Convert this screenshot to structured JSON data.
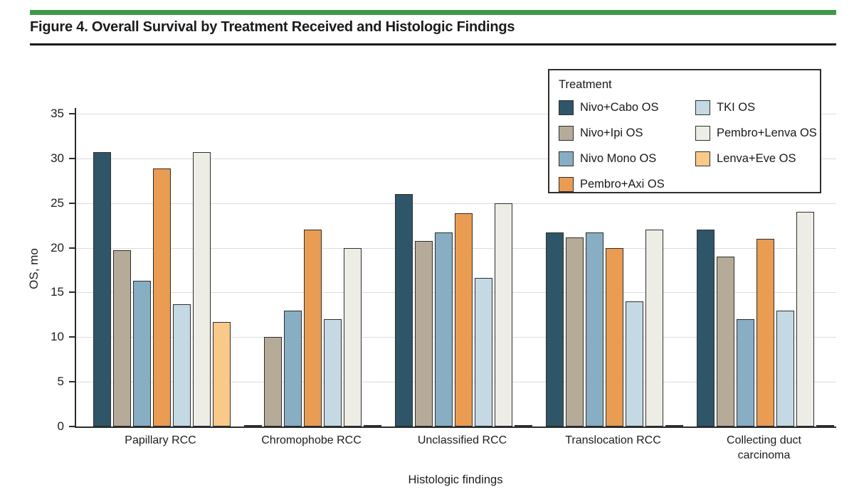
{
  "figure": {
    "title": "Figure 4. Overall Survival by Treatment Received and Histologic Findings",
    "accent_color": "#3D9A47"
  },
  "chart_data": {
    "type": "bar",
    "title": "Overall Survival by Treatment Received and Histologic Findings",
    "xlabel": "Histologic findings",
    "ylabel": "OS, mo",
    "ylim": [
      0,
      35
    ],
    "yticks": [
      0,
      5,
      10,
      15,
      20,
      25,
      30,
      35
    ],
    "grid": "horizontal-light-gray",
    "legend": {
      "title": "Treatment",
      "position": "top-right-inside",
      "columns": [
        [
          0,
          1,
          2,
          3
        ],
        [
          4,
          5,
          6
        ]
      ]
    },
    "categories": [
      "Papillary RCC",
      "Chromophobe RCC",
      "Unclassified RCC",
      "Translocation RCC",
      "Collecting duct carcinoma"
    ],
    "series": [
      {
        "name": "Nivo+Cabo OS",
        "color": "#2F5668",
        "values": [
          30.7,
          0.1,
          26.0,
          21.7,
          22.0
        ]
      },
      {
        "name": "Nivo+Ipi OS",
        "color": "#B5AB98",
        "values": [
          19.7,
          10.0,
          20.8,
          21.2,
          19.0
        ]
      },
      {
        "name": "Nivo Mono OS",
        "color": "#87AEC3",
        "values": [
          16.3,
          13.0,
          21.7,
          21.7,
          12.0
        ]
      },
      {
        "name": "Pembro+Axi OS",
        "color": "#E99C52",
        "values": [
          28.9,
          22.0,
          23.9,
          20.0,
          21.0
        ]
      },
      {
        "name": "TKI OS",
        "color": "#C4D9E4",
        "values": [
          13.7,
          12.0,
          16.6,
          14.0,
          13.0
        ]
      },
      {
        "name": "Pembro+Lenva OS",
        "color": "#EDEDE5",
        "values": [
          30.7,
          20.0,
          25.0,
          22.0,
          24.0
        ]
      },
      {
        "name": "Lenva+Eve OS",
        "color": "#F9C98A",
        "values": [
          11.7,
          0.1,
          0.1,
          0.1,
          0.1
        ]
      }
    ]
  }
}
